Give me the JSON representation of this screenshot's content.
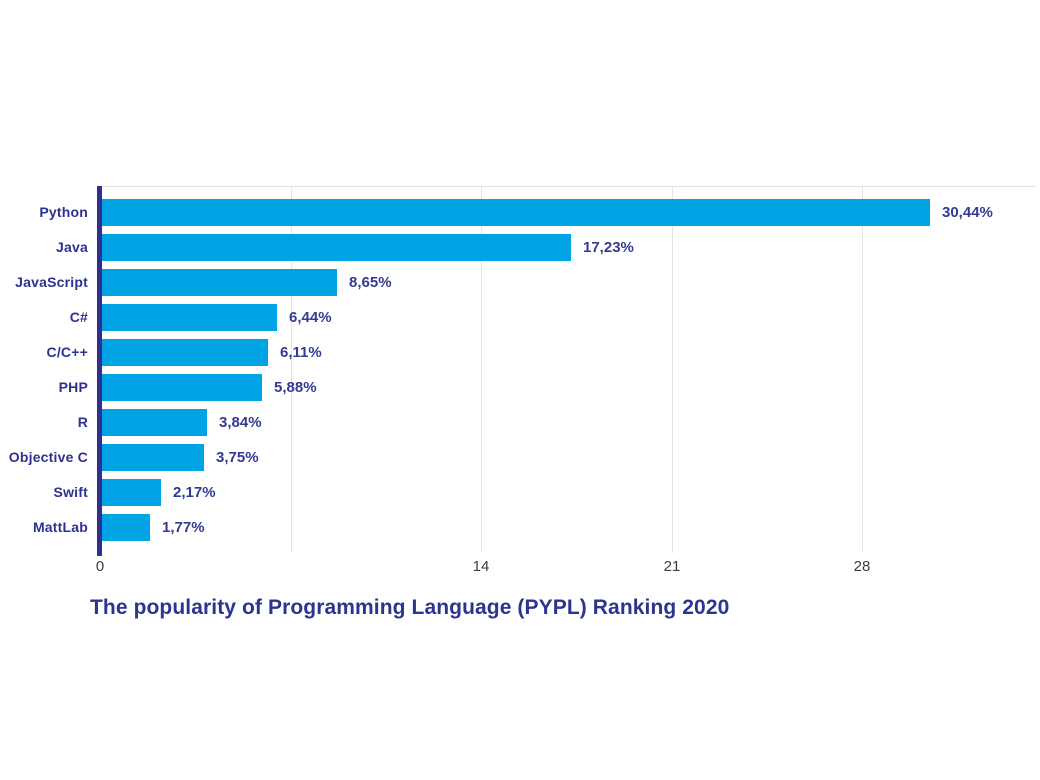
{
  "chart_data": {
    "type": "bar",
    "orientation": "horizontal",
    "title": "The popularity of Programming Language (PYPL) Ranking 2020",
    "categories": [
      "Python",
      "Java",
      "JavaScript",
      "C#",
      "C/C++",
      "PHP",
      "R",
      "Objective C",
      "Swift",
      "MattLab"
    ],
    "values": [
      30.44,
      17.23,
      8.65,
      6.44,
      6.11,
      5.88,
      3.84,
      3.75,
      2.17,
      1.77
    ],
    "value_labels": [
      "30,44%",
      "17,23%",
      "8,65%",
      "6,44%",
      "6,11%",
      "5,88%",
      "3,84%",
      "3,75%",
      "2,17%",
      "1,77%"
    ],
    "xlabel": "",
    "ylabel": "",
    "xlim": [
      0,
      28
    ],
    "x_tick_values": [
      0,
      14,
      21,
      28
    ],
    "x_tick_labels": [
      "0",
      "14",
      "21",
      "28"
    ],
    "x_gridline_values": [
      7,
      14,
      21,
      28
    ],
    "grid": "vertical-only",
    "legend": "none",
    "colors": {
      "bar": "#00A4E4",
      "axis": "#2E3192",
      "category_text": "#2E3192",
      "value_text": "#333A93",
      "tick_text": "#3d3d3f",
      "gridline": "#e4e4e6",
      "background": "#ffffff"
    }
  }
}
